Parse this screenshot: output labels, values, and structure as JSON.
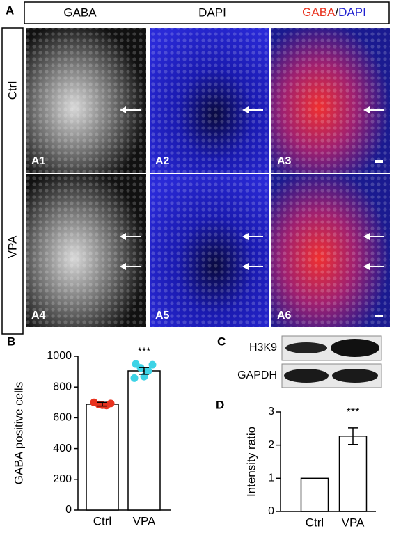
{
  "panel_a": {
    "label": "A",
    "columns": [
      "GABA",
      "DAPI"
    ],
    "merge": [
      "GABA",
      "/",
      "DAPI"
    ],
    "rows": [
      "Ctrl",
      "VPA"
    ],
    "images": [
      "A1",
      "A2",
      "A3",
      "A4",
      "A5",
      "A6"
    ]
  },
  "panel_c": {
    "label": "C",
    "bands": [
      "H3K9",
      "GAPDH"
    ]
  },
  "chart_data": [
    {
      "type": "bar",
      "label": "B",
      "ylabel": "GABA positive cells",
      "categories": [
        "Ctrl",
        "VPA"
      ],
      "values": [
        688,
        905
      ],
      "errors": [
        12,
        22
      ],
      "colors": [
        "#e8321e",
        "#3dd3e6"
      ],
      "points": [
        [
          700,
          693,
          686,
          680,
          682
        ],
        [
          950,
          945,
          925,
          905,
          868,
          858
        ]
      ],
      "annotation": "***",
      "ylim": [
        0,
        1000
      ],
      "yticks": [
        0,
        200,
        400,
        600,
        800,
        1000
      ]
    },
    {
      "type": "bar",
      "label": "D",
      "ylabel": "Intensity ratio",
      "categories": [
        "Ctrl",
        "VPA"
      ],
      "values": [
        1,
        2.27
      ],
      "errors": [
        0,
        0.25
      ],
      "annotation": "***",
      "ylim": [
        0,
        3
      ],
      "yticks": [
        0,
        1,
        2,
        3
      ]
    }
  ]
}
